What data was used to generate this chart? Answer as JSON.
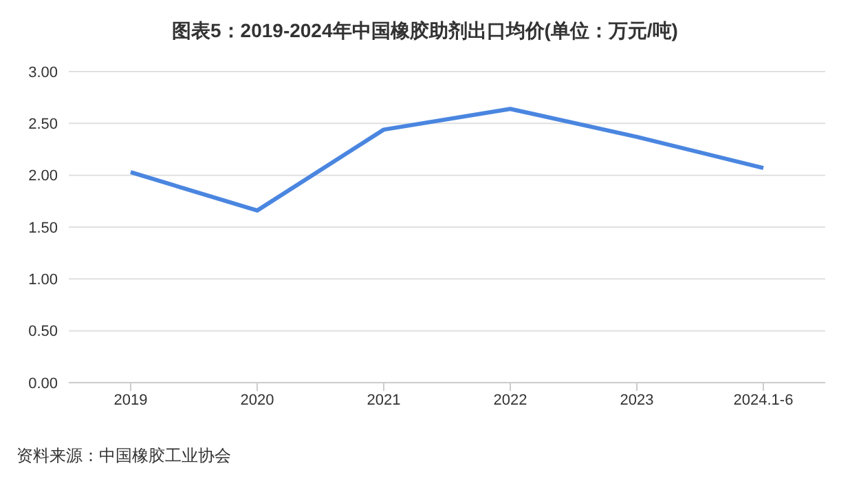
{
  "chart_data": {
    "type": "line",
    "title": "图表5：2019-2024年中国橡胶助剂出口均价(单位：万元/吨)",
    "categories": [
      "2019",
      "2020",
      "2021",
      "2022",
      "2023",
      "2024.1-6"
    ],
    "series": [
      {
        "color": "#4a86e0",
        "values": [
          2.03,
          1.66,
          2.44,
          2.64,
          2.37,
          2.07
        ]
      }
    ],
    "ylim": [
      0,
      3
    ],
    "yticks": [
      {
        "value": 0,
        "label": "0.00"
      },
      {
        "value": 0.5,
        "label": "0.50"
      },
      {
        "value": 1,
        "label": "1.00"
      },
      {
        "value": 1.5,
        "label": "1.50"
      },
      {
        "value": 2,
        "label": "2.00"
      },
      {
        "value": 2.5,
        "label": "2.50"
      },
      {
        "value": 3,
        "label": "3.00"
      }
    ],
    "grid": "y",
    "marker": "none",
    "line_style": "solid",
    "annotations": [
      "资料来源：中国橡胶工业协会"
    ]
  }
}
